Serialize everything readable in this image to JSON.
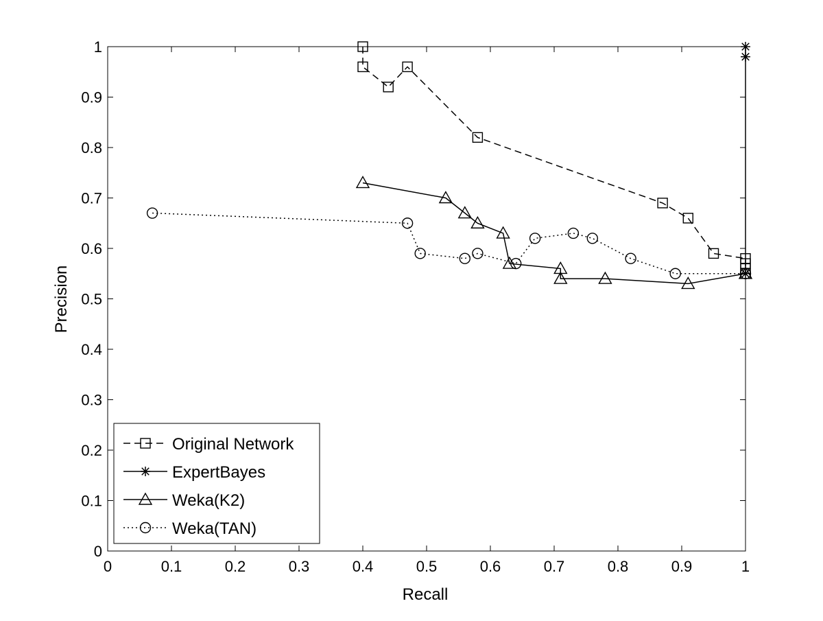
{
  "chart_data": {
    "type": "line",
    "xlabel": "Recall",
    "ylabel": "Precision",
    "xlim": [
      0,
      1
    ],
    "ylim": [
      0,
      1
    ],
    "xticks": [
      "0",
      "0.1",
      "0.2",
      "0.3",
      "0.4",
      "0.5",
      "0.6",
      "0.7",
      "0.8",
      "0.9",
      "1"
    ],
    "yticks": [
      "0",
      "0.1",
      "0.2",
      "0.3",
      "0.4",
      "0.5",
      "0.6",
      "0.7",
      "0.8",
      "0.9",
      "1"
    ],
    "grid": false,
    "legend_position": "bottom-left",
    "series": [
      {
        "name": "Original Network",
        "line_style": "dashed",
        "marker": "square",
        "color": "#000000",
        "x": [
          0.4,
          0.4,
          0.44,
          0.47,
          0.58,
          0.87,
          0.91,
          0.95,
          1.0,
          1.0,
          1.0,
          1.0
        ],
        "y": [
          1.0,
          0.96,
          0.92,
          0.96,
          0.82,
          0.69,
          0.66,
          0.59,
          0.58,
          0.57,
          0.56,
          0.55
        ]
      },
      {
        "name": "ExpertBayes",
        "line_style": "solid",
        "marker": "star",
        "color": "#000000",
        "x": [
          1.0,
          1.0,
          1.0
        ],
        "y": [
          1.0,
          0.98,
          0.55
        ]
      },
      {
        "name": "Weka(K2)",
        "line_style": "solid",
        "marker": "triangle",
        "color": "#000000",
        "x": [
          0.4,
          0.53,
          0.56,
          0.58,
          0.62,
          0.63,
          0.71,
          0.71,
          0.78,
          0.91,
          1.0
        ],
        "y": [
          0.73,
          0.7,
          0.67,
          0.65,
          0.63,
          0.57,
          0.56,
          0.54,
          0.54,
          0.53,
          0.55
        ]
      },
      {
        "name": "Weka(TAN)",
        "line_style": "dotted",
        "marker": "circle",
        "color": "#000000",
        "x": [
          0.07,
          0.47,
          0.49,
          0.56,
          0.58,
          0.64,
          0.67,
          0.73,
          0.76,
          0.82,
          0.89,
          1.0
        ],
        "y": [
          0.67,
          0.65,
          0.59,
          0.58,
          0.59,
          0.57,
          0.62,
          0.63,
          0.62,
          0.58,
          0.55,
          0.55
        ]
      }
    ]
  }
}
